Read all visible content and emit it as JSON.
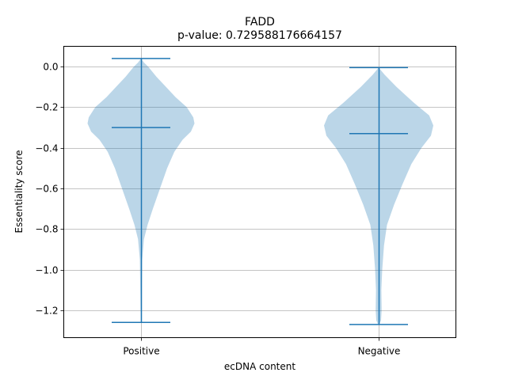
{
  "chart_data": {
    "type": "violin",
    "title": "FADD",
    "subtitle": "p-value: 0.729588176664157",
    "xlabel": "ecDNA content",
    "ylabel": "Essentiality score",
    "categories": [
      "Positive",
      "Negative"
    ],
    "ylim": [
      -1.335,
      0.1
    ],
    "yticks": [
      0.0,
      -0.2,
      -0.4,
      -0.6,
      -0.8,
      -1.0,
      -1.2
    ],
    "ytick_labels": [
      "0.0",
      "−0.2",
      "−0.4",
      "−0.6",
      "−0.8",
      "−1.0",
      "−1.2"
    ],
    "grid": true,
    "colors": {
      "body": "#1f77b4",
      "body_opacity": 0.3,
      "lines": "#1f77b4",
      "grid": "#b0b0b0"
    },
    "violins": [
      {
        "category": "Positive",
        "max": 0.04,
        "median": -0.3,
        "min": -1.26,
        "profile": [
          [
            0.04,
            0.0
          ],
          [
            0.02,
            0.05
          ],
          [
            0.0,
            0.12
          ],
          [
            -0.05,
            0.26
          ],
          [
            -0.1,
            0.42
          ],
          [
            -0.15,
            0.58
          ],
          [
            -0.2,
            0.77
          ],
          [
            -0.25,
            0.88
          ],
          [
            -0.28,
            0.9
          ],
          [
            -0.32,
            0.84
          ],
          [
            -0.36,
            0.7
          ],
          [
            -0.42,
            0.56
          ],
          [
            -0.5,
            0.44
          ],
          [
            -0.6,
            0.32
          ],
          [
            -0.7,
            0.2
          ],
          [
            -0.78,
            0.11
          ],
          [
            -0.85,
            0.05
          ],
          [
            -0.95,
            0.02
          ],
          [
            -1.1,
            0.012
          ],
          [
            -1.26,
            0.005
          ]
        ]
      },
      {
        "category": "Negative",
        "max": -0.005,
        "median": -0.33,
        "min": -1.27,
        "profile": [
          [
            -0.005,
            0.0
          ],
          [
            -0.04,
            0.1
          ],
          [
            -0.1,
            0.3
          ],
          [
            -0.18,
            0.6
          ],
          [
            -0.24,
            0.85
          ],
          [
            -0.29,
            0.92
          ],
          [
            -0.34,
            0.88
          ],
          [
            -0.4,
            0.72
          ],
          [
            -0.48,
            0.55
          ],
          [
            -0.58,
            0.4
          ],
          [
            -0.68,
            0.26
          ],
          [
            -0.78,
            0.14
          ],
          [
            -0.88,
            0.09
          ],
          [
            -1.0,
            0.06
          ],
          [
            -1.1,
            0.045
          ],
          [
            -1.2,
            0.05
          ],
          [
            -1.25,
            0.04
          ],
          [
            -1.27,
            0.01
          ]
        ]
      }
    ]
  }
}
